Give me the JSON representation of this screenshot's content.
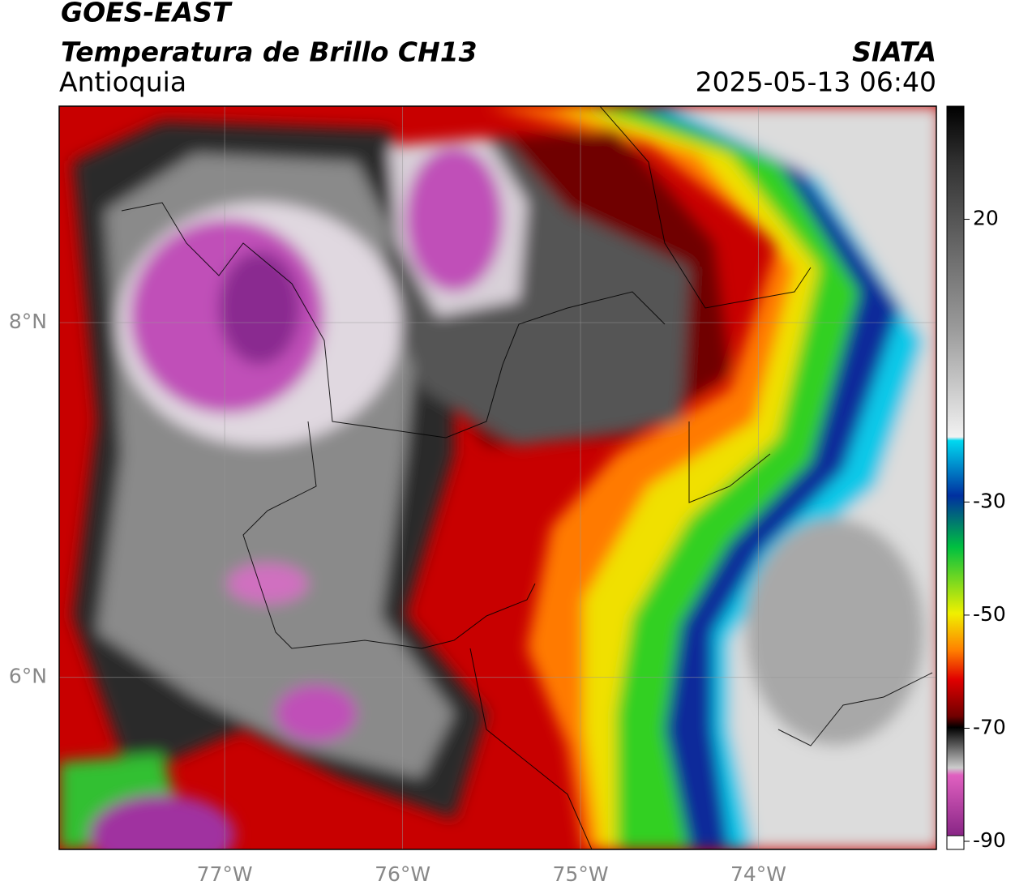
{
  "header": {
    "title": "GOES-EAST",
    "subtitle": "Temperatura de Brillo CH13",
    "region": "Antioquia",
    "source": "SIATA",
    "datetime": "2025-05-13 06:40"
  },
  "map": {
    "lonlim": [
      -77.93,
      -73.0
    ],
    "latlim": [
      5.03,
      9.22
    ],
    "lat_ticks": [
      {
        "value": 8,
        "label": "8°N"
      },
      {
        "value": 6,
        "label": "6°N"
      }
    ],
    "lon_ticks": [
      {
        "value": -77,
        "label": "77°W"
      },
      {
        "value": -76,
        "label": "76°W"
      },
      {
        "value": -75,
        "label": "75°W"
      },
      {
        "value": -74,
        "label": "74°W"
      }
    ]
  },
  "colorbar": {
    "lim": [
      -90,
      40
    ],
    "ticks": [
      20,
      -30,
      -50,
      -70,
      -90
    ]
  }
}
